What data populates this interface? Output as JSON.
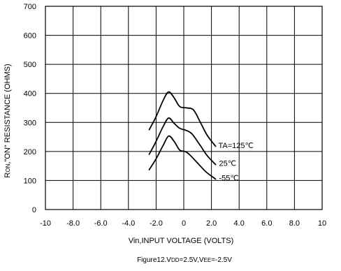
{
  "chart_data": {
    "type": "line",
    "title": "",
    "xlabel": "Vin,INPUT VOLTAGE (VOLTS)",
    "ylabel": {
      "p1": "R",
      "sub1": "ON",
      "p2": ",\"ON\" RESISTANCE (OHMS)"
    },
    "caption": {
      "p1": "Figure12.V",
      "sub1": "DD",
      "p2": "=2.5V,V",
      "sub2": "EE",
      "p3": "=-2.5V"
    },
    "xlim": [
      -10,
      10
    ],
    "ylim": [
      0,
      700
    ],
    "grid": true,
    "x_ticks": [
      "-10",
      "-8.0",
      "-6.0",
      "-4.0",
      "-2.0",
      "0",
      "2.0",
      "4.0",
      "6.0",
      "8.0",
      "10"
    ],
    "y_ticks": [
      "0",
      "100",
      "200",
      "300",
      "400",
      "500",
      "600",
      "700"
    ],
    "series": [
      {
        "label": "TA=125℃",
        "points": [
          [
            -2.5,
            275
          ],
          [
            -2.0,
            320
          ],
          [
            -1.5,
            375
          ],
          [
            -1.1,
            405
          ],
          [
            -0.7,
            385
          ],
          [
            -0.3,
            355
          ],
          [
            0.2,
            350
          ],
          [
            0.7,
            343
          ],
          [
            1.2,
            300
          ],
          [
            1.7,
            255
          ],
          [
            2.3,
            218
          ]
        ],
        "label_at": [
          2.5,
          212
        ]
      },
      {
        "label": "25℃",
        "points": [
          [
            -2.5,
            190
          ],
          [
            -2.0,
            235
          ],
          [
            -1.5,
            285
          ],
          [
            -1.1,
            315
          ],
          [
            -0.7,
            297
          ],
          [
            -0.3,
            280
          ],
          [
            0.2,
            272
          ],
          [
            0.6,
            260
          ],
          [
            1.2,
            220
          ],
          [
            1.7,
            185
          ],
          [
            2.3,
            155
          ]
        ],
        "label_at": [
          2.55,
          150
        ]
      },
      {
        "label": "-55℃",
        "points": [
          [
            -2.5,
            137
          ],
          [
            -2.0,
            175
          ],
          [
            -1.5,
            220
          ],
          [
            -1.1,
            253
          ],
          [
            -0.7,
            235
          ],
          [
            -0.3,
            205
          ],
          [
            0.1,
            200
          ],
          [
            0.4,
            190
          ],
          [
            1.0,
            160
          ],
          [
            1.6,
            130
          ],
          [
            2.3,
            105
          ]
        ],
        "label_at": [
          2.55,
          100
        ]
      }
    ]
  }
}
